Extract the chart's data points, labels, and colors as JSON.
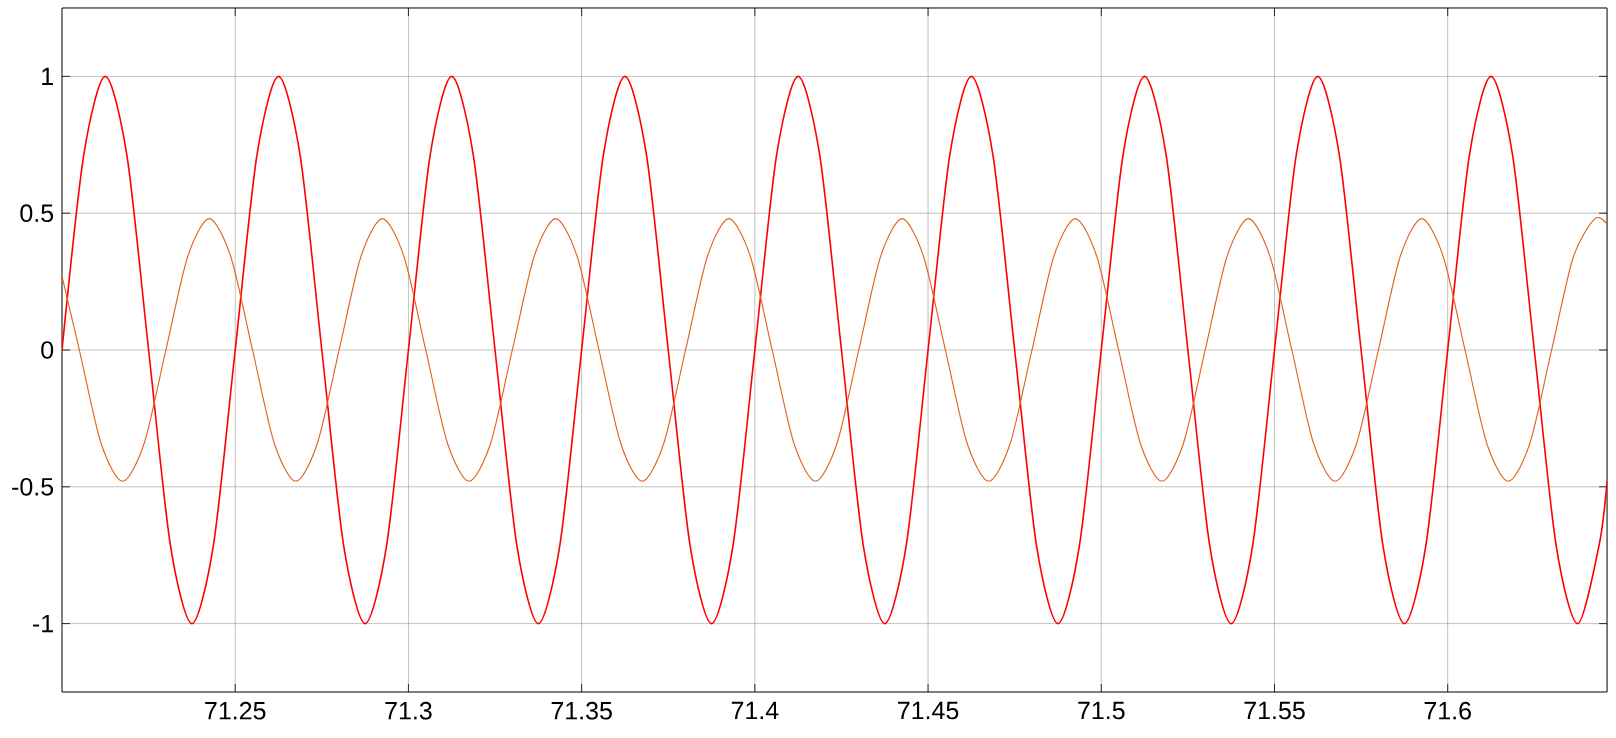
{
  "chart_data": {
    "type": "line",
    "xlim": [
      71.2,
      71.646
    ],
    "ylim": [
      -1.25,
      1.25
    ],
    "xticks": [
      71.25,
      71.3,
      71.35,
      71.4,
      71.45,
      71.5,
      71.55,
      71.6
    ],
    "yticks": [
      -1,
      -0.5,
      0,
      0.5,
      1
    ],
    "grid": true,
    "marker": "none",
    "line_style": "solid",
    "series": [
      {
        "color": "#ff0000",
        "x": [
          71.2,
          71.20625,
          71.2125,
          71.21875,
          71.225,
          71.23125,
          71.2375,
          71.24375,
          71.25,
          71.25625,
          71.2625,
          71.26875,
          71.275,
          71.28125,
          71.2875,
          71.29375,
          71.3,
          71.30625,
          71.3125,
          71.31875,
          71.325,
          71.33125,
          71.3375,
          71.34375,
          71.35,
          71.35625,
          71.3625,
          71.36875,
          71.375,
          71.38125,
          71.3875,
          71.39375,
          71.4,
          71.40625,
          71.4125,
          71.41875,
          71.425,
          71.43125,
          71.4375,
          71.44375,
          71.45,
          71.45625,
          71.4625,
          71.46875,
          71.475,
          71.48125,
          71.4875,
          71.49375,
          71.5,
          71.50625,
          71.5125,
          71.51875,
          71.525,
          71.53125,
          71.5375,
          71.54375,
          71.55,
          71.55625,
          71.5625,
          71.56875,
          71.575,
          71.58125,
          71.5875,
          71.59375,
          71.6,
          71.60625,
          71.6125,
          71.61875,
          71.625,
          71.63125,
          71.6375,
          71.64375,
          71.646
        ],
        "values": [
          0,
          0.71,
          1,
          0.71,
          0,
          -0.71,
          -1,
          -0.71,
          0,
          0.71,
          1,
          0.71,
          0,
          -0.71,
          -1,
          -0.71,
          0,
          0.71,
          1,
          0.71,
          0,
          -0.71,
          -1,
          -0.71,
          0,
          0.71,
          1,
          0.71,
          0,
          -0.71,
          -1,
          -0.71,
          0,
          0.71,
          1,
          0.71,
          0,
          -0.71,
          -1,
          -0.71,
          0,
          0.71,
          1,
          0.71,
          0,
          -0.71,
          -1,
          -0.71,
          0,
          0.71,
          1,
          0.71,
          0,
          -0.71,
          -1,
          -0.71,
          0,
          0.71,
          1,
          0.71,
          0,
          -0.71,
          -1,
          -0.71,
          0,
          0.71,
          1,
          0.71,
          0,
          -0.71,
          -1,
          -0.71,
          -0.48
        ]
      },
      {
        "color": "#e0601a",
        "x": [
          71.2,
          71.205,
          71.21125,
          71.2175,
          71.22375,
          71.23,
          71.23625,
          71.2425,
          71.24875,
          71.255,
          71.26125,
          71.2675,
          71.27375,
          71.28,
          71.28625,
          71.2925,
          71.29875,
          71.305,
          71.31125,
          71.3175,
          71.32375,
          71.33,
          71.33625,
          71.3425,
          71.34875,
          71.355,
          71.36125,
          71.3675,
          71.37375,
          71.38,
          71.38625,
          71.3925,
          71.39875,
          71.405,
          71.41125,
          71.4175,
          71.42375,
          71.43,
          71.43625,
          71.4425,
          71.44875,
          71.455,
          71.46125,
          71.4675,
          71.47375,
          71.48,
          71.48625,
          71.4925,
          71.49875,
          71.505,
          71.51125,
          71.5175,
          71.52375,
          71.53,
          71.53625,
          71.5425,
          71.54875,
          71.555,
          71.56125,
          71.5675,
          71.57375,
          71.58,
          71.58625,
          71.5925,
          71.59875,
          71.605,
          71.61125,
          71.6175,
          71.62375,
          71.63,
          71.63625,
          71.6425,
          71.646
        ],
        "values": [
          0.27,
          0,
          -0.34,
          -0.48,
          -0.34,
          0,
          0.34,
          0.48,
          0.34,
          0,
          -0.34,
          -0.48,
          -0.34,
          0,
          0.34,
          0.48,
          0.34,
          0,
          -0.34,
          -0.48,
          -0.34,
          0,
          0.34,
          0.48,
          0.34,
          0,
          -0.34,
          -0.48,
          -0.34,
          0,
          0.34,
          0.48,
          0.34,
          0,
          -0.34,
          -0.48,
          -0.34,
          0,
          0.34,
          0.48,
          0.34,
          0,
          -0.34,
          -0.48,
          -0.34,
          0,
          0.34,
          0.48,
          0.34,
          0,
          -0.34,
          -0.48,
          -0.34,
          0,
          0.34,
          0.48,
          0.34,
          0,
          -0.34,
          -0.48,
          -0.34,
          0,
          0.34,
          0.48,
          0.34,
          0,
          -0.34,
          -0.48,
          -0.34,
          0,
          0.34,
          0.48,
          0.46
        ]
      }
    ]
  }
}
